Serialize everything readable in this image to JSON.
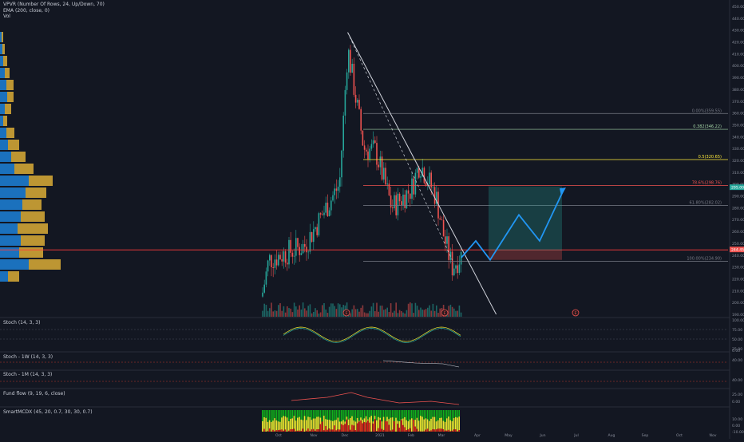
{
  "indicators": {
    "vpvr": "VPVR (Number Of Rows, 24, Up/Down, 70)",
    "ema": "EMA (200, close, 0)",
    "vol": "Vol"
  },
  "panes": {
    "stoch": "Stoch (14, 3, 3)",
    "stoch_1w": "Stoch - 1W (14, 3, 3)",
    "stoch_1m": "Stoch - 1M (14, 3, 3)",
    "fund_flow": "Fund flow (9, 19, 6, close)",
    "smartmcdx": "SmartMCDX (45, 20, 0.7, 30, 30, 0.7)"
  },
  "price_axis_ticks": [
    "450.00",
    "440.00",
    "430.00",
    "420.00",
    "410.00",
    "400.00",
    "390.00",
    "380.00",
    "370.00",
    "360.00",
    "350.00",
    "340.00",
    "330.00",
    "320.00",
    "310.00",
    "300.00",
    "290.00",
    "280.00",
    "270.00",
    "260.00",
    "250.00",
    "240.00",
    "230.00",
    "220.00",
    "210.00",
    "200.00",
    "190.00"
  ],
  "indicator_axis_ticks": {
    "stoch": [
      "100.00",
      "75.00",
      "50.00",
      "25.00",
      "0.00"
    ],
    "stoch_1w": [
      "40.00"
    ],
    "stoch_1m": [
      "40.00"
    ],
    "fund_flow": [
      "25.00",
      "0.00"
    ],
    "smartmcdx": [
      "10.00",
      "0.00",
      "-10.00"
    ]
  },
  "time_axis": [
    "Oct",
    "Nov",
    "Dec",
    "2021",
    "Feb",
    "Mar",
    "Apr",
    "May",
    "Jun",
    "Jul",
    "Aug",
    "Sep",
    "Oct",
    "Nov"
  ],
  "fib_labels": [
    {
      "text": "0.00%(359.55)",
      "price": 359.55
    },
    {
      "text": "0.382(346.22)",
      "price": 346.22
    },
    {
      "text": "0.5(320.65)",
      "price": 320.65
    },
    {
      "text": "78.6%(298.76)",
      "price": 298.76
    },
    {
      "text": "61.80%(282.02)",
      "price": 282.02
    },
    {
      "text": "100.00%(234.90)",
      "price": 234.9
    }
  ],
  "price_badges": {
    "upper": "295.00",
    "lower": "244.45"
  },
  "markers": [
    "E",
    "E",
    "E"
  ],
  "colors": {
    "background": "#131722",
    "up": "#26a69a",
    "down": "#ef5350",
    "vpvr_up": "#1e88e5",
    "vpvr_down": "#f7c23a",
    "projection": "#2196f3",
    "red_line": "#ff3b3b",
    "mcdx_green": "#11b01c",
    "mcdx_yellow": "#f0e531",
    "mcdx_red": "#d71a1a"
  },
  "chart_data": {
    "type": "candlestick",
    "symbol_timeframe": "daily",
    "ylim": [
      190,
      450
    ],
    "x": [
      "2020-09-25",
      "2020-10-01",
      "2020-11-01",
      "2020-12-01",
      "2020-12-08",
      "2020-12-22",
      "2021-01-01",
      "2021-01-15",
      "2021-02-01",
      "2021-02-08",
      "2021-02-22",
      "2021-03-01",
      "2021-03-08",
      "2021-03-16"
    ],
    "close": [
      205,
      236,
      248,
      300,
      415,
      330,
      328,
      280,
      296,
      318,
      290,
      255,
      230,
      240
    ],
    "trendline": {
      "from": {
        "date": "2020-12-08",
        "price": 428
      },
      "to": {
        "date": "2021-04-15",
        "price": 190
      }
    },
    "horizontal_level": 244.45,
    "projection_path": [
      238,
      252,
      236,
      274,
      252,
      295
    ]
  }
}
